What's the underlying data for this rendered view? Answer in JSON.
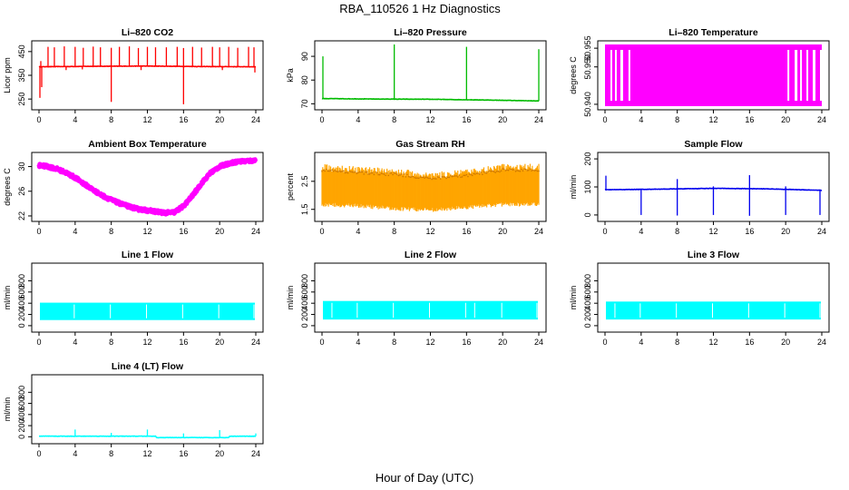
{
  "figure": {
    "title": "RBA_110526 1 Hz Diagnostics",
    "xlabel": "Hour of Day (UTC)"
  },
  "chart_data": [
    {
      "type": "line",
      "title": "Li–820 CO2",
      "ylabel": "Licor ppm",
      "color": "#ff0000",
      "xlim": [
        0,
        24
      ],
      "xticks": [
        0,
        4,
        8,
        12,
        16,
        20,
        24
      ],
      "ylim": [
        220,
        480
      ],
      "yticks": [
        250,
        350,
        450
      ],
      "baseline": [
        [
          0,
          386
        ],
        [
          6,
          388
        ],
        [
          12,
          389
        ],
        [
          18,
          387
        ],
        [
          24,
          386
        ]
      ],
      "spikes_up": [
        [
          0.2,
          410
        ],
        [
          1.0,
          470
        ],
        [
          1.7,
          468
        ],
        [
          2.8,
          472
        ],
        [
          4.0,
          470
        ],
        [
          4.9,
          466
        ],
        [
          6.0,
          471
        ],
        [
          6.8,
          468
        ],
        [
          8.0,
          466
        ],
        [
          8.9,
          470
        ],
        [
          10.0,
          472
        ],
        [
          11.0,
          465
        ],
        [
          12.0,
          470
        ],
        [
          12.9,
          468
        ],
        [
          14.1,
          468
        ],
        [
          15.3,
          470
        ],
        [
          16.0,
          465
        ],
        [
          17.0,
          470
        ],
        [
          18.0,
          467
        ],
        [
          19.2,
          470
        ],
        [
          20.0,
          468
        ],
        [
          21.0,
          470
        ],
        [
          22.0,
          466
        ],
        [
          23.2,
          470
        ],
        [
          23.8,
          468
        ]
      ],
      "spikes_down": [
        [
          0.1,
          255
        ],
        [
          0.3,
          300
        ],
        [
          3.0,
          372
        ],
        [
          4.8,
          375
        ],
        [
          8.0,
          238
        ],
        [
          11.3,
          372
        ],
        [
          16.0,
          228
        ],
        [
          20.3,
          372
        ],
        [
          23.9,
          362
        ]
      ],
      "ylim_note": "spikes ~470"
    },
    {
      "type": "line",
      "title": "Li–820 Pressure",
      "ylabel": "kPa",
      "color": "#00bb00",
      "xlim": [
        0,
        24
      ],
      "xticks": [
        0,
        4,
        8,
        12,
        16,
        20,
        24
      ],
      "ylim": [
        69,
        95
      ],
      "yticks": [
        70,
        80,
        90
      ],
      "baseline": [
        [
          0,
          72.2
        ],
        [
          6,
          72.0
        ],
        [
          12,
          71.9
        ],
        [
          18,
          71.6
        ],
        [
          24,
          71.2
        ]
      ],
      "spikes_up": [
        [
          0.1,
          90
        ],
        [
          8.0,
          95
        ],
        [
          16.0,
          94
        ],
        [
          24.0,
          93
        ]
      ],
      "spikes_down": []
    },
    {
      "type": "area",
      "title": "Li–820 Temperature",
      "ylabel": "degrees C",
      "color": "#ff00ff",
      "xlim": [
        0,
        24
      ],
      "xticks": [
        0,
        4,
        8,
        12,
        16,
        20,
        24
      ],
      "ylim": [
        50.9395,
        50.956
      ],
      "yticks": [
        50.94,
        50.95,
        50.955
      ],
      "ytick_labels": [
        "50.940",
        "50.950",
        "50.955"
      ],
      "gaps": [
        [
          0.6,
          0.8
        ],
        [
          1.1,
          1.3
        ],
        [
          1.7,
          2.0
        ],
        [
          2.6,
          2.8
        ],
        [
          20.2,
          20.4
        ],
        [
          21.0,
          21.3
        ],
        [
          21.6,
          21.8
        ],
        [
          22.3,
          22.5
        ],
        [
          23.0,
          23.3
        ],
        [
          23.8,
          24.0
        ]
      ]
    },
    {
      "type": "line",
      "title": "Ambient Box Temperature",
      "ylabel": "degrees C",
      "color": "#ff00ff",
      "xlim": [
        0,
        24
      ],
      "xticks": [
        0,
        4,
        8,
        12,
        16,
        20,
        24
      ],
      "ylim": [
        21.7,
        31.7
      ],
      "yticks": [
        22,
        26,
        30
      ],
      "series": [
        [
          0,
          30.2
        ],
        [
          1,
          30.0
        ],
        [
          2,
          29.6
        ],
        [
          3,
          29.0
        ],
        [
          4,
          28.2
        ],
        [
          5,
          27.2
        ],
        [
          6,
          26.2
        ],
        [
          7,
          25.3
        ],
        [
          8,
          24.6
        ],
        [
          9,
          24.0
        ],
        [
          10,
          23.5
        ],
        [
          11,
          23.1
        ],
        [
          12,
          22.9
        ],
        [
          13,
          22.7
        ],
        [
          14,
          22.5
        ],
        [
          15,
          22.6
        ],
        [
          16,
          23.6
        ],
        [
          17,
          25.3
        ],
        [
          18,
          27.3
        ],
        [
          19,
          29.0
        ],
        [
          20,
          30.0
        ],
        [
          21,
          30.5
        ],
        [
          22,
          30.8
        ],
        [
          23,
          30.9
        ],
        [
          24,
          31.0
        ]
      ],
      "noise": 0.5
    },
    {
      "type": "area",
      "title": "Gas Stream RH",
      "ylabel": "percent",
      "color": "#ffa500",
      "xlim": [
        0,
        24
      ],
      "xticks": [
        0,
        4,
        8,
        12,
        16,
        20,
        24
      ],
      "ylim": [
        1.2,
        3.4
      ],
      "yticks": [
        1.5,
        2.5
      ],
      "upper": [
        [
          0,
          2.95
        ],
        [
          4,
          2.85
        ],
        [
          8,
          2.8
        ],
        [
          12,
          2.65
        ],
        [
          16,
          2.75
        ],
        [
          20,
          2.95
        ],
        [
          24,
          2.95
        ]
      ],
      "lower": [
        [
          0,
          1.75
        ],
        [
          4,
          1.7
        ],
        [
          8,
          1.6
        ],
        [
          12,
          1.55
        ],
        [
          16,
          1.65
        ],
        [
          20,
          1.75
        ],
        [
          24,
          1.75
        ]
      ]
    },
    {
      "type": "line",
      "title": "Sample Flow",
      "ylabel": "ml/min",
      "color": "#0000ee",
      "xlim": [
        0,
        24
      ],
      "xticks": [
        0,
        4,
        8,
        12,
        16,
        20,
        24
      ],
      "ylim": [
        -10,
        210
      ],
      "yticks": [
        0,
        100,
        200
      ],
      "baseline": [
        [
          0,
          90
        ],
        [
          6,
          92
        ],
        [
          12,
          95
        ],
        [
          18,
          93
        ],
        [
          24,
          88
        ]
      ],
      "spikes_up": [
        [
          0.1,
          140
        ],
        [
          8.0,
          128
        ],
        [
          12.0,
          102
        ],
        [
          16.0,
          142
        ],
        [
          20.0,
          102
        ]
      ],
      "spikes_down": [
        [
          4.0,
          0
        ],
        [
          8.0,
          -2
        ],
        [
          12.0,
          0
        ],
        [
          16.0,
          -3
        ],
        [
          20.0,
          0
        ],
        [
          23.8,
          0
        ]
      ]
    },
    {
      "type": "area",
      "title": "Line 1 Flow",
      "ylabel": "ml/min",
      "color": "#00ffff",
      "xlim": [
        0,
        24
      ],
      "xticks": [
        0,
        4,
        8,
        12,
        16,
        20,
        24
      ],
      "ylim": [
        -50,
        1050
      ],
      "yticks": [
        0,
        200,
        400,
        600,
        800
      ],
      "upper_level": 410,
      "lower_level": 100,
      "gaps": [
        3.9,
        7.9,
        11.9,
        15.9,
        19.9,
        23.8
      ]
    },
    {
      "type": "area",
      "title": "Line 2 Flow",
      "ylabel": "ml/min",
      "color": "#00ffff",
      "xlim": [
        0,
        24
      ],
      "xticks": [
        0,
        4,
        8,
        12,
        16,
        20,
        24
      ],
      "ylim": [
        -50,
        1050
      ],
      "yticks": [
        0,
        200,
        400,
        600,
        800
      ],
      "upper_level": 440,
      "lower_level": 110,
      "gaps": [
        1.1,
        3.9,
        7.9,
        11.9,
        15.9,
        16.9,
        19.9,
        23.8
      ]
    },
    {
      "type": "area",
      "title": "Line 3 Flow",
      "ylabel": "ml/min",
      "color": "#00ffff",
      "xlim": [
        0,
        24
      ],
      "xticks": [
        0,
        4,
        8,
        12,
        16,
        20,
        24
      ],
      "ylim": [
        -50,
        1050
      ],
      "yticks": [
        0,
        200,
        400,
        600,
        800
      ],
      "upper_level": 430,
      "lower_level": 110,
      "gaps": [
        1.1,
        3.9,
        7.9,
        11.9,
        15.9,
        19.9,
        23.8
      ]
    },
    {
      "type": "line",
      "title": "Line 4 (LT) Flow",
      "ylabel": "ml/min",
      "color": "#00ffff",
      "xlim": [
        0,
        24
      ],
      "xticks": [
        0,
        4,
        8,
        12,
        16,
        20,
        24
      ],
      "ylim": [
        -60,
        1050
      ],
      "yticks": [
        0,
        200,
        400,
        600,
        800
      ],
      "baseline": [
        [
          0,
          10
        ],
        [
          12.9,
          10
        ],
        [
          13.0,
          -15
        ],
        [
          21,
          -15
        ],
        [
          21.1,
          10
        ],
        [
          24,
          10
        ]
      ],
      "spikes_up": [
        [
          4.0,
          130
        ],
        [
          8.0,
          70
        ],
        [
          12.0,
          130
        ],
        [
          16.0,
          60
        ],
        [
          20.0,
          120
        ],
        [
          24.0,
          60
        ]
      ],
      "spikes_down": []
    }
  ]
}
